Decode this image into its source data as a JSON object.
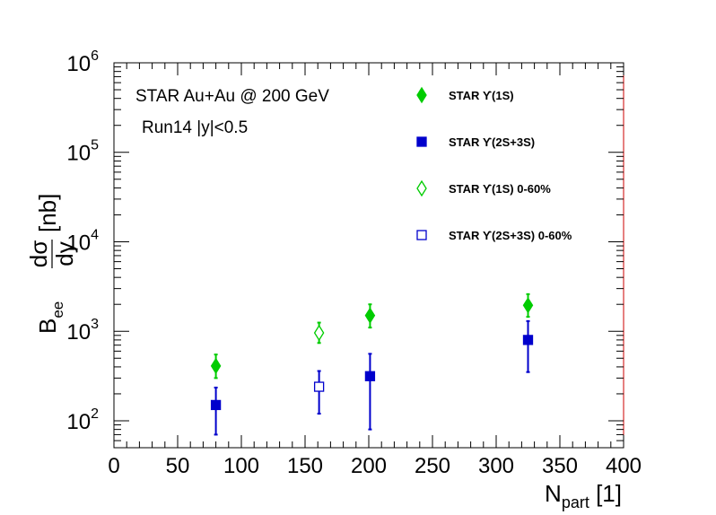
{
  "chart_data": {
    "type": "scatter",
    "x_axis": {
      "range": [
        0,
        400
      ],
      "ticks": [
        0,
        50,
        100,
        150,
        200,
        250,
        300,
        350,
        400
      ],
      "label_main": "N",
      "label_sub": "part",
      "label_unit": " [1]"
    },
    "y_axis": {
      "scale": "log",
      "range": [
        50,
        1000000
      ],
      "tick_base": "10",
      "tick_exponents": [
        2,
        3,
        4,
        5,
        6
      ],
      "label_main": "B",
      "label_sub": "ee",
      "label_frac_num": "dσ",
      "label_frac_den": "dy",
      "label_unit": "[nb]"
    },
    "annotations": [
      "STAR Au+Au @ 200 GeV",
      "Run14 |y|<0.5"
    ],
    "legend": {
      "position": "top-right",
      "entries": [
        {
          "label": "STAR  ϒ(1S)",
          "marker": "diamond-filled",
          "color": "#00cc00"
        },
        {
          "label": "STAR  ϒ(2S+3S)",
          "marker": "square-filled",
          "color": "#0000cc"
        },
        {
          "label": "STAR  ϒ(1S) 0-60%",
          "marker": "diamond-open",
          "color": "#00cc00"
        },
        {
          "label": "STAR  ϒ(2S+3S) 0-60%",
          "marker": "square-open",
          "color": "#0000cc"
        }
      ]
    },
    "series": [
      {
        "name": "STAR  ϒ(1S)",
        "marker": "diamond-filled",
        "color": "#00cc00",
        "points": [
          {
            "x": 80,
            "y": 410,
            "y_low": 300,
            "y_high": 550
          },
          {
            "x": 201,
            "y": 1500,
            "y_low": 1100,
            "y_high": 2000
          },
          {
            "x": 325,
            "y": 1950,
            "y_low": 1450,
            "y_high": 2600
          }
        ]
      },
      {
        "name": "STAR  ϒ(2S+3S)",
        "marker": "square-filled",
        "color": "#0000cc",
        "points": [
          {
            "x": 80,
            "y": 150,
            "y_low": 70,
            "y_high": 235
          },
          {
            "x": 201,
            "y": 315,
            "y_low": 80,
            "y_high": 560
          },
          {
            "x": 325,
            "y": 800,
            "y_low": 350,
            "y_high": 1300
          }
        ]
      },
      {
        "name": "STAR  ϒ(1S) 0-60%",
        "marker": "diamond-open",
        "color": "#00cc00",
        "points": [
          {
            "x": 161,
            "y": 960,
            "y_low": 740,
            "y_high": 1250
          }
        ]
      },
      {
        "name": "STAR  ϒ(2S+3S) 0-60%",
        "marker": "square-open",
        "color": "#0000cc",
        "points": [
          {
            "x": 161,
            "y": 240,
            "y_low": 120,
            "y_high": 360
          }
        ]
      }
    ]
  }
}
